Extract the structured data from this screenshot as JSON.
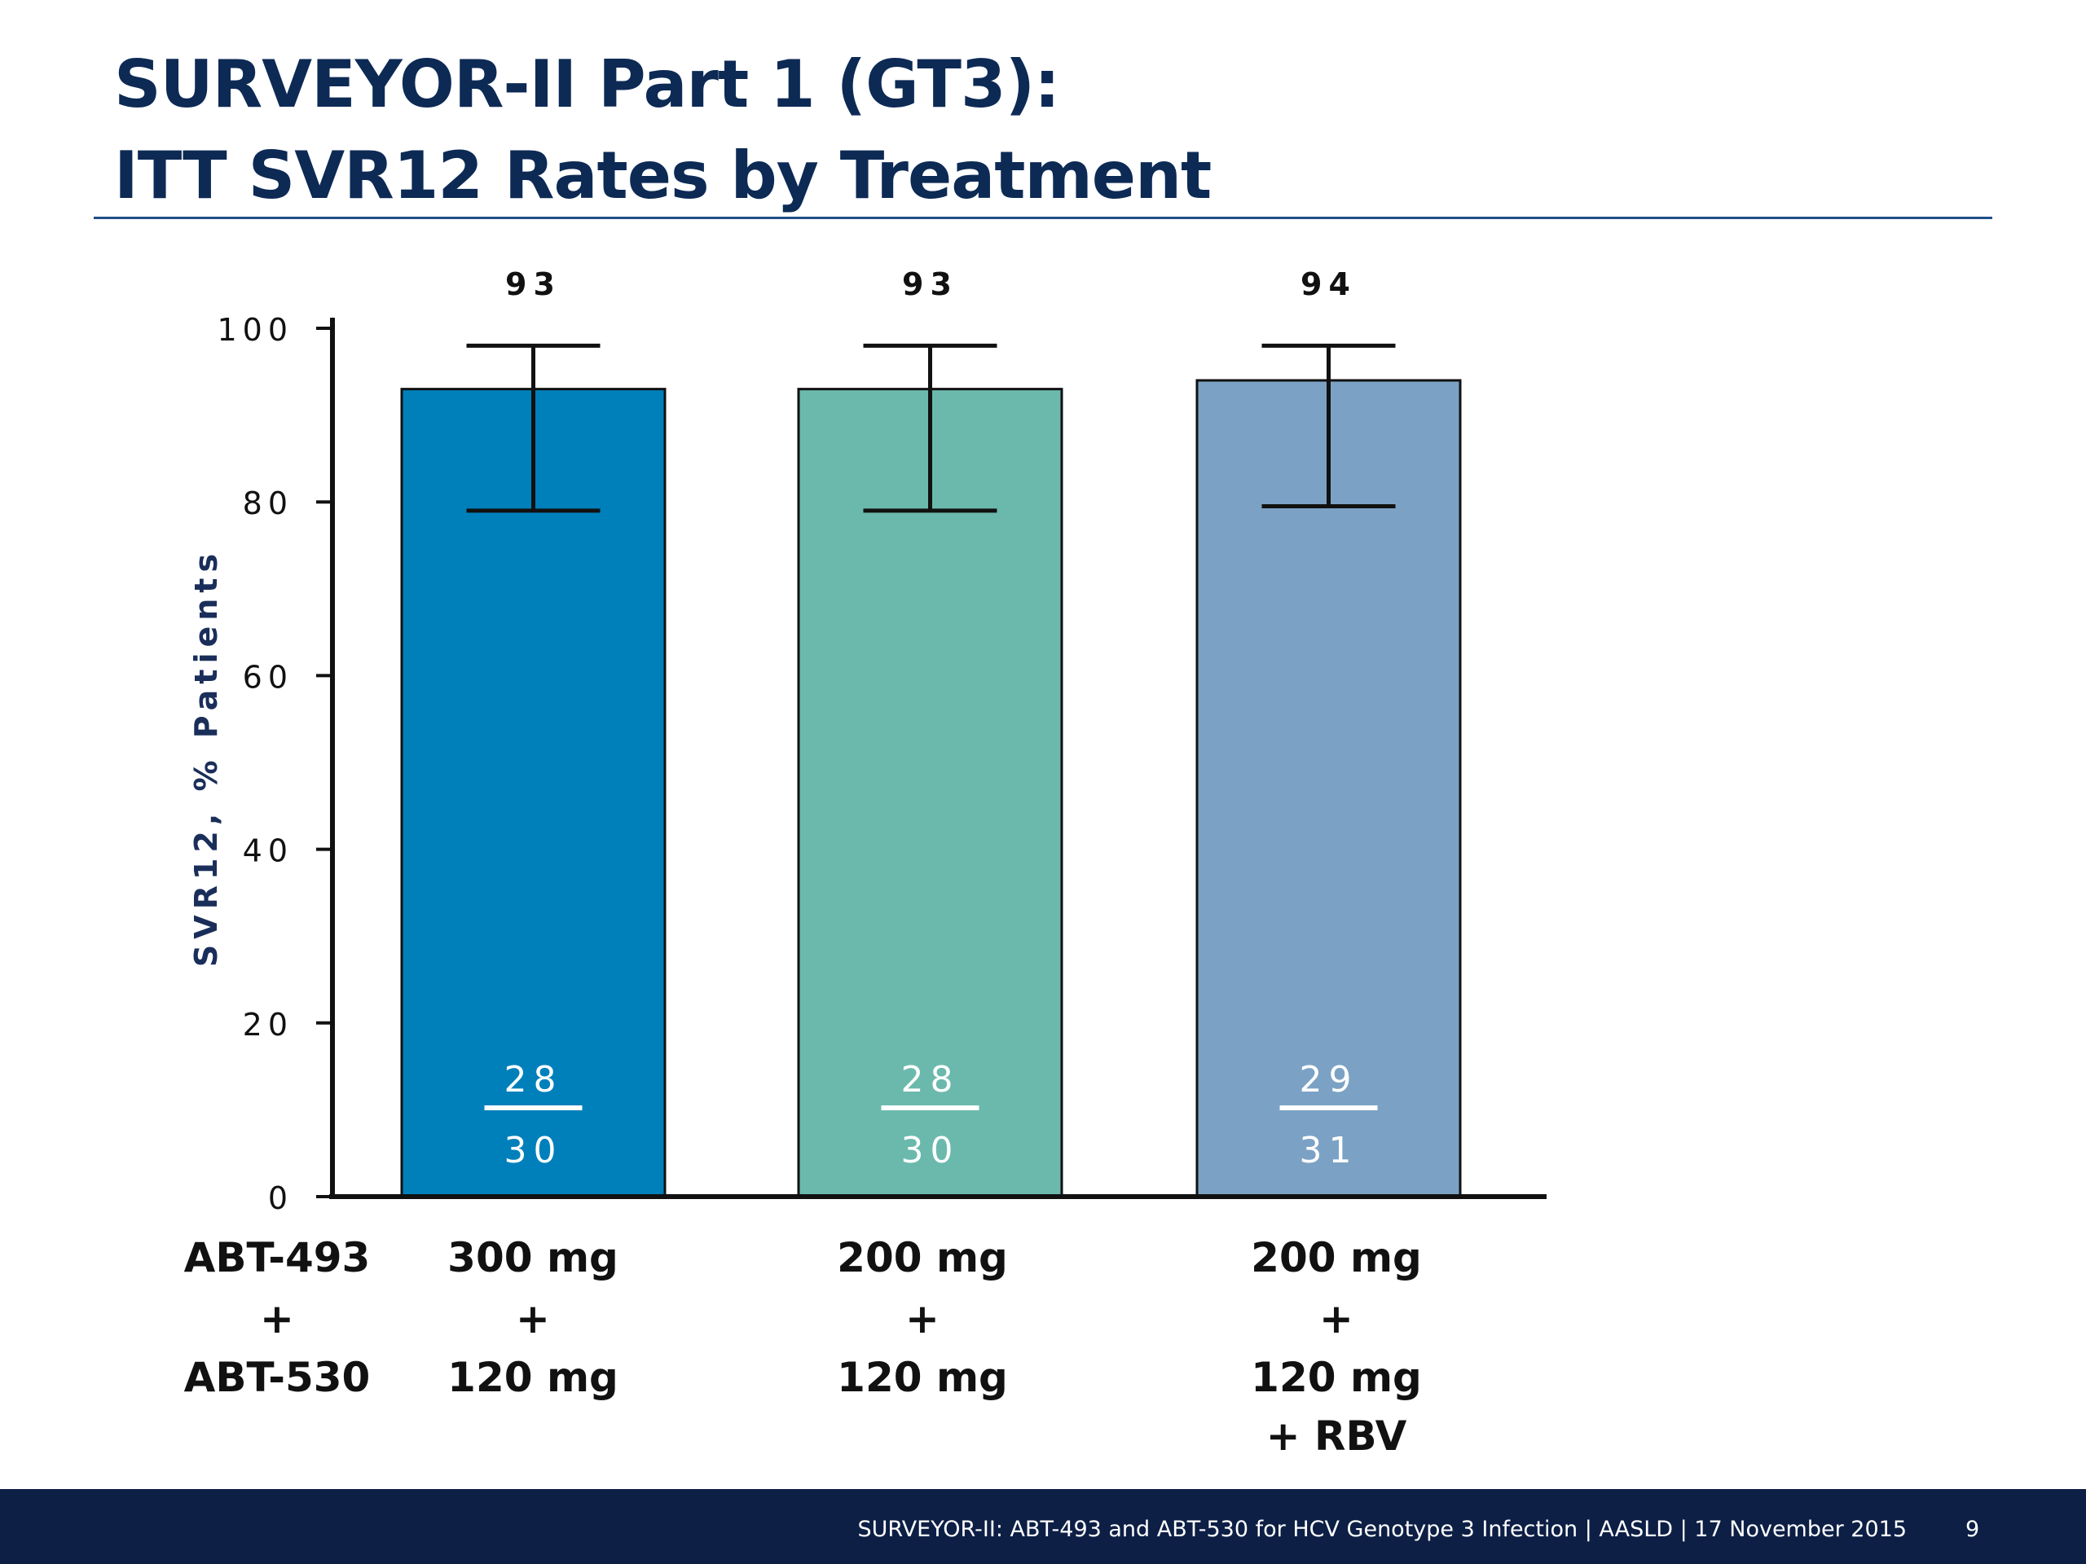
{
  "slide": {
    "title_line1": "SURVEYOR-II Part 1 (GT3):",
    "title_line2": "ITT SVR12 Rates by Treatment"
  },
  "chart_data": {
    "type": "bar",
    "title": "",
    "ylabel": "SVR12, % Patients",
    "ylim": [
      0,
      100
    ],
    "yticks": [
      0,
      20,
      40,
      60,
      80,
      100
    ],
    "categories": [
      "300 mg + 120 mg",
      "200 mg + 120 mg",
      "200 mg + 120 mg + RBV"
    ],
    "values": [
      93,
      93,
      94
    ],
    "value_labels": [
      "93",
      "93",
      "94"
    ],
    "error_bars": [
      {
        "low": 79,
        "high": 98
      },
      {
        "low": 79,
        "high": 98
      },
      {
        "low": 79.5,
        "high": 98
      }
    ],
    "fractions": [
      {
        "num": "28",
        "den": "30"
      },
      {
        "num": "28",
        "den": "30"
      },
      {
        "num": "29",
        "den": "31"
      }
    ],
    "colors": [
      "#0080bb",
      "#6bb9ad",
      "#7ba2c5"
    ],
    "grid": false
  },
  "row_labels": {
    "drug1": "ABT-493",
    "plus": "+",
    "drug2": "ABT-530"
  },
  "doses": [
    {
      "line1": "300 mg",
      "line2": "+",
      "line3": "120 mg",
      "line4": ""
    },
    {
      "line1": "200 mg",
      "line2": "+",
      "line3": "120 mg",
      "line4": ""
    },
    {
      "line1": "200 mg",
      "line2": "+",
      "line3": "120 mg",
      "line4": "+ RBV"
    }
  ],
  "footer": {
    "text": "SURVEYOR-II: ABT-493 and ABT-530 for HCV Genotype 3 Infection   | AASLD | 17 November 2015",
    "page": "9"
  }
}
